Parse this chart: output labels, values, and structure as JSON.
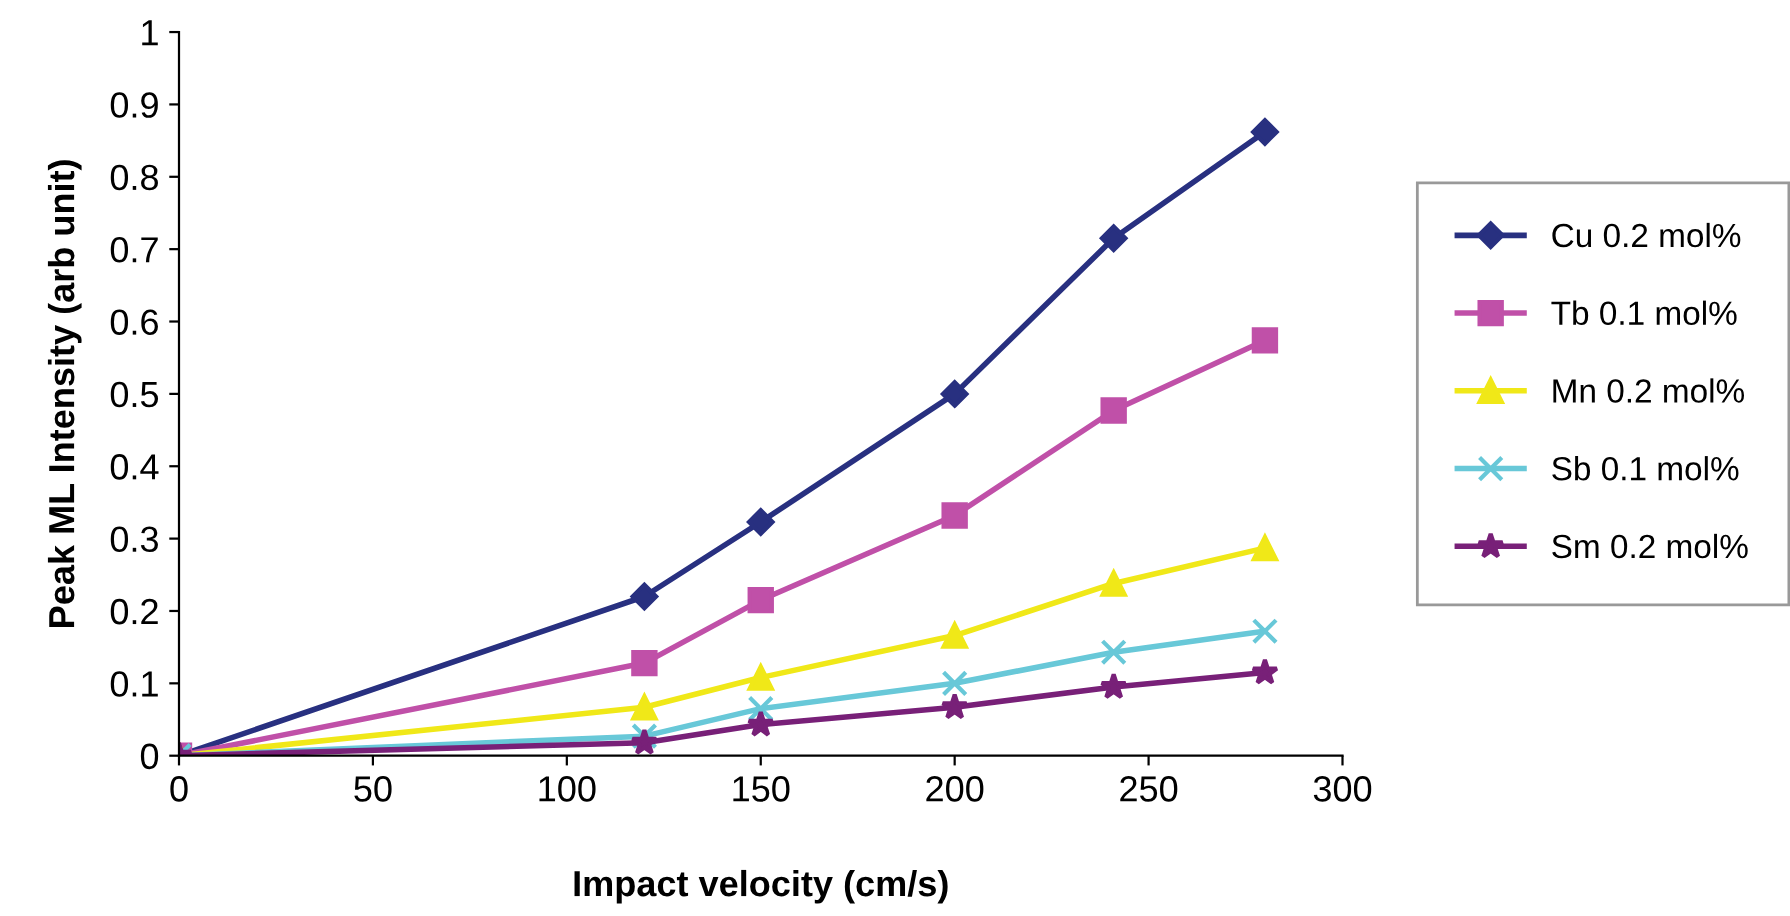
{
  "chart_data": {
    "type": "line",
    "xlabel": "Impact velocity (cm/s)",
    "ylabel": "Peak ML Intensity (arb unit)",
    "x": [
      0,
      120,
      150,
      200,
      241,
      280
    ],
    "series": [
      {
        "name": "Cu 0.2 mol%",
        "color": "#283080",
        "marker": "diamond",
        "values": [
          0,
          0.22,
          0.323,
          0.5,
          0.715,
          0.862
        ]
      },
      {
        "name": "Tb 0.1 mol%",
        "color": "#c050a8",
        "marker": "square",
        "values": [
          0,
          0.128,
          0.215,
          0.332,
          0.477,
          0.574
        ]
      },
      {
        "name": "Mn 0.2 mol%",
        "color": "#f0e818",
        "marker": "triangle",
        "values": [
          0,
          0.067,
          0.108,
          0.166,
          0.238,
          0.287
        ]
      },
      {
        "name": "Sb 0.1 mol%",
        "color": "#68c8d8",
        "marker": "cross",
        "values": [
          0,
          0.027,
          0.065,
          0.1,
          0.143,
          0.172
        ]
      },
      {
        "name": "Sm 0.2 mol%",
        "color": "#782078",
        "marker": "star",
        "values": [
          0,
          0.018,
          0.043,
          0.067,
          0.095,
          0.115
        ]
      }
    ],
    "xlim": [
      0,
      300
    ],
    "xticks": [
      0,
      50,
      100,
      150,
      200,
      250,
      300
    ],
    "ylim": [
      0,
      1
    ],
    "yticks": [
      0,
      0.1,
      0.2,
      0.3,
      0.4,
      0.5,
      0.6,
      0.7,
      0.8,
      0.9,
      1
    ],
    "grid": false,
    "legend": "right",
    "line_style": "solid"
  }
}
